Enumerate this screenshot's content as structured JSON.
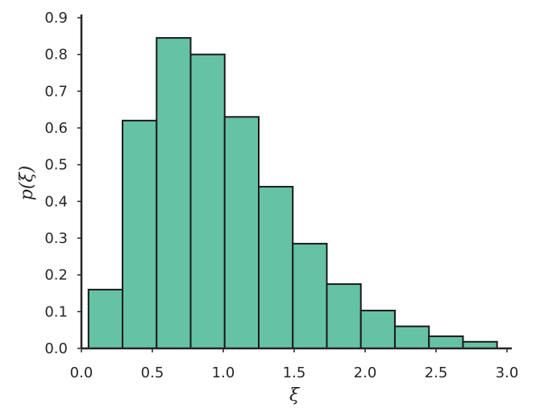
{
  "chart_data": {
    "type": "bar",
    "title": "",
    "xlabel": "ξ",
    "ylabel": "p(ξ)",
    "xlim": [
      0.0,
      3.0
    ],
    "ylim": [
      0.0,
      0.9
    ],
    "grid": false,
    "bar_color": "#66c2a5",
    "edge_color": "#1a1a1a",
    "bin_edges": [
      0.05,
      0.29,
      0.53,
      0.77,
      1.01,
      1.25,
      1.49,
      1.73,
      1.97,
      2.21,
      2.45,
      2.69,
      2.93
    ],
    "values": [
      0.16,
      0.62,
      0.845,
      0.8,
      0.63,
      0.44,
      0.285,
      0.175,
      0.103,
      0.06,
      0.033,
      0.018
    ],
    "x_ticks": [
      0.0,
      0.5,
      1.0,
      1.5,
      2.0,
      2.5,
      3.0
    ],
    "x_tick_labels": [
      "0.0",
      "0.5",
      "1.0",
      "1.5",
      "2.0",
      "2.5",
      "3.0"
    ],
    "y_ticks": [
      0.0,
      0.1,
      0.2,
      0.3,
      0.4,
      0.5,
      0.6,
      0.7,
      0.8,
      0.9
    ],
    "y_tick_labels": [
      "0.0",
      "0.1",
      "0.2",
      "0.3",
      "0.4",
      "0.5",
      "0.6",
      "0.7",
      "0.8",
      "0.9"
    ]
  }
}
